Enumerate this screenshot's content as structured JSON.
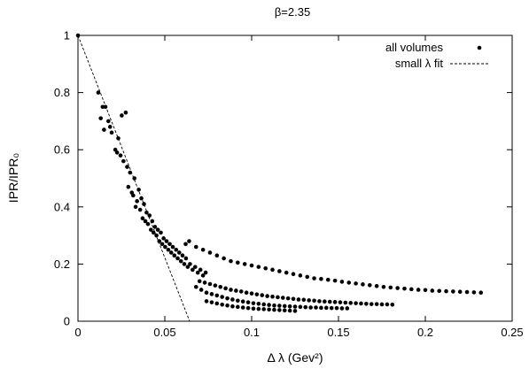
{
  "chart_data": {
    "type": "scatter",
    "title": "β=2.35",
    "xlabel": "Δ λ (Gev²)",
    "ylabel": "IPR/IPR₀",
    "xlim": [
      0,
      0.25
    ],
    "ylim": [
      0,
      1
    ],
    "x_ticks": [
      "0",
      "0.05",
      "0.1",
      "0.15",
      "0.2",
      "0.25"
    ],
    "y_ticks": [
      "0",
      "0.2",
      "0.4",
      "0.6",
      "0.8",
      "1"
    ],
    "grid": false,
    "legend_position": "top-right",
    "series": [
      {
        "name": "all volumes",
        "style": "points",
        "points": [
          [
            0.0,
            1.0
          ],
          [
            0.0117,
            0.8
          ],
          [
            0.0131,
            0.71
          ],
          [
            0.0142,
            0.75
          ],
          [
            0.015,
            0.67
          ],
          [
            0.0158,
            0.75
          ],
          [
            0.0175,
            0.7
          ],
          [
            0.0185,
            0.68
          ],
          [
            0.0194,
            0.66
          ],
          [
            0.0215,
            0.6
          ],
          [
            0.0225,
            0.59
          ],
          [
            0.0232,
            0.64
          ],
          [
            0.0245,
            0.58
          ],
          [
            0.0252,
            0.72
          ],
          [
            0.0262,
            0.56
          ],
          [
            0.0275,
            0.73
          ],
          [
            0.0283,
            0.54
          ],
          [
            0.029,
            0.47
          ],
          [
            0.03,
            0.52
          ],
          [
            0.031,
            0.45
          ],
          [
            0.0318,
            0.44
          ],
          [
            0.0325,
            0.5
          ],
          [
            0.0332,
            0.4
          ],
          [
            0.034,
            0.42
          ],
          [
            0.035,
            0.46
          ],
          [
            0.0358,
            0.39
          ],
          [
            0.0365,
            0.43
          ],
          [
            0.0372,
            0.36
          ],
          [
            0.038,
            0.41
          ],
          [
            0.0388,
            0.35
          ],
          [
            0.0395,
            0.38
          ],
          [
            0.0403,
            0.34
          ],
          [
            0.0412,
            0.37
          ],
          [
            0.042,
            0.32
          ],
          [
            0.0428,
            0.35
          ],
          [
            0.0435,
            0.31
          ],
          [
            0.0443,
            0.33
          ],
          [
            0.0452,
            0.3
          ],
          [
            0.046,
            0.32
          ],
          [
            0.0468,
            0.28
          ],
          [
            0.0477,
            0.31
          ],
          [
            0.0485,
            0.27
          ],
          [
            0.0493,
            0.29
          ],
          [
            0.0502,
            0.26
          ],
          [
            0.051,
            0.28
          ],
          [
            0.052,
            0.25
          ],
          [
            0.0528,
            0.27
          ],
          [
            0.0537,
            0.24
          ],
          [
            0.0546,
            0.26
          ],
          [
            0.0555,
            0.23
          ],
          [
            0.0565,
            0.25
          ],
          [
            0.0574,
            0.22
          ],
          [
            0.0583,
            0.24
          ],
          [
            0.0593,
            0.21
          ],
          [
            0.0602,
            0.23
          ],
          [
            0.0612,
            0.2
          ],
          [
            0.0622,
            0.22
          ],
          [
            0.0632,
            0.19
          ],
          [
            0.0645,
            0.2
          ],
          [
            0.066,
            0.18
          ],
          [
            0.0675,
            0.19
          ],
          [
            0.069,
            0.17
          ],
          [
            0.0705,
            0.18
          ],
          [
            0.072,
            0.16
          ],
          [
            0.0735,
            0.17
          ],
          [
            0.062,
            0.27
          ],
          [
            0.064,
            0.28
          ],
          [
            0.068,
            0.26
          ],
          [
            0.072,
            0.25
          ],
          [
            0.076,
            0.24
          ],
          [
            0.08,
            0.23
          ],
          [
            0.084,
            0.22
          ],
          [
            0.088,
            0.21
          ],
          [
            0.092,
            0.205
          ],
          [
            0.096,
            0.2
          ],
          [
            0.1,
            0.195
          ],
          [
            0.104,
            0.19
          ],
          [
            0.108,
            0.185
          ],
          [
            0.112,
            0.18
          ],
          [
            0.116,
            0.175
          ],
          [
            0.12,
            0.17
          ],
          [
            0.124,
            0.165
          ],
          [
            0.128,
            0.16
          ],
          [
            0.132,
            0.155
          ],
          [
            0.136,
            0.15
          ],
          [
            0.14,
            0.148
          ],
          [
            0.144,
            0.145
          ],
          [
            0.148,
            0.142
          ],
          [
            0.152,
            0.138
          ],
          [
            0.156,
            0.135
          ],
          [
            0.16,
            0.132
          ],
          [
            0.164,
            0.129
          ],
          [
            0.168,
            0.126
          ],
          [
            0.172,
            0.123
          ],
          [
            0.176,
            0.12
          ],
          [
            0.18,
            0.118
          ],
          [
            0.184,
            0.116
          ],
          [
            0.188,
            0.114
          ],
          [
            0.192,
            0.112
          ],
          [
            0.196,
            0.11
          ],
          [
            0.2,
            0.109
          ],
          [
            0.204,
            0.107
          ],
          [
            0.208,
            0.106
          ],
          [
            0.212,
            0.105
          ],
          [
            0.216,
            0.104
          ],
          [
            0.22,
            0.103
          ],
          [
            0.224,
            0.102
          ],
          [
            0.228,
            0.101
          ],
          [
            0.232,
            0.1
          ],
          [
            0.07,
            0.14
          ],
          [
            0.073,
            0.135
          ],
          [
            0.076,
            0.13
          ],
          [
            0.079,
            0.125
          ],
          [
            0.082,
            0.12
          ],
          [
            0.085,
            0.115
          ],
          [
            0.088,
            0.11
          ],
          [
            0.091,
            0.107
          ],
          [
            0.094,
            0.104
          ],
          [
            0.097,
            0.1
          ],
          [
            0.1,
            0.097
          ],
          [
            0.103,
            0.094
          ],
          [
            0.106,
            0.091
          ],
          [
            0.109,
            0.088
          ],
          [
            0.112,
            0.086
          ],
          [
            0.115,
            0.084
          ],
          [
            0.118,
            0.082
          ],
          [
            0.121,
            0.08
          ],
          [
            0.124,
            0.078
          ],
          [
            0.127,
            0.076
          ],
          [
            0.13,
            0.075
          ],
          [
            0.133,
            0.073
          ],
          [
            0.136,
            0.072
          ],
          [
            0.139,
            0.07
          ],
          [
            0.142,
            0.069
          ],
          [
            0.145,
            0.068
          ],
          [
            0.148,
            0.067
          ],
          [
            0.151,
            0.066
          ],
          [
            0.154,
            0.065
          ],
          [
            0.157,
            0.064
          ],
          [
            0.16,
            0.063
          ],
          [
            0.163,
            0.062
          ],
          [
            0.166,
            0.061
          ],
          [
            0.169,
            0.06
          ],
          [
            0.172,
            0.06
          ],
          [
            0.175,
            0.059
          ],
          [
            0.178,
            0.059
          ],
          [
            0.181,
            0.058
          ],
          [
            0.068,
            0.12
          ],
          [
            0.071,
            0.11
          ],
          [
            0.074,
            0.1
          ],
          [
            0.077,
            0.095
          ],
          [
            0.08,
            0.09
          ],
          [
            0.083,
            0.085
          ],
          [
            0.086,
            0.08
          ],
          [
            0.089,
            0.076
          ],
          [
            0.092,
            0.072
          ],
          [
            0.095,
            0.069
          ],
          [
            0.098,
            0.066
          ],
          [
            0.101,
            0.063
          ],
          [
            0.104,
            0.061
          ],
          [
            0.107,
            0.059
          ],
          [
            0.11,
            0.057
          ],
          [
            0.113,
            0.055
          ],
          [
            0.116,
            0.054
          ],
          [
            0.119,
            0.053
          ],
          [
            0.122,
            0.052
          ],
          [
            0.125,
            0.051
          ],
          [
            0.128,
            0.05
          ],
          [
            0.131,
            0.049
          ],
          [
            0.134,
            0.048
          ],
          [
            0.137,
            0.048
          ],
          [
            0.14,
            0.047
          ],
          [
            0.143,
            0.047
          ],
          [
            0.146,
            0.046
          ],
          [
            0.149,
            0.046
          ],
          [
            0.152,
            0.045
          ],
          [
            0.155,
            0.045
          ],
          [
            0.074,
            0.07
          ],
          [
            0.077,
            0.066
          ],
          [
            0.08,
            0.062
          ],
          [
            0.083,
            0.058
          ],
          [
            0.086,
            0.055
          ],
          [
            0.089,
            0.052
          ],
          [
            0.092,
            0.05
          ],
          [
            0.095,
            0.048
          ],
          [
            0.098,
            0.046
          ],
          [
            0.101,
            0.044
          ],
          [
            0.104,
            0.043
          ],
          [
            0.107,
            0.042
          ],
          [
            0.11,
            0.041
          ],
          [
            0.113,
            0.04
          ],
          [
            0.116,
            0.039
          ],
          [
            0.119,
            0.038
          ],
          [
            0.122,
            0.037
          ],
          [
            0.125,
            0.036
          ]
        ]
      },
      {
        "name": "small λ fit",
        "style": "dashed-line",
        "points": [
          [
            0.0,
            1.0
          ],
          [
            0.0643,
            0.0
          ]
        ]
      }
    ]
  }
}
